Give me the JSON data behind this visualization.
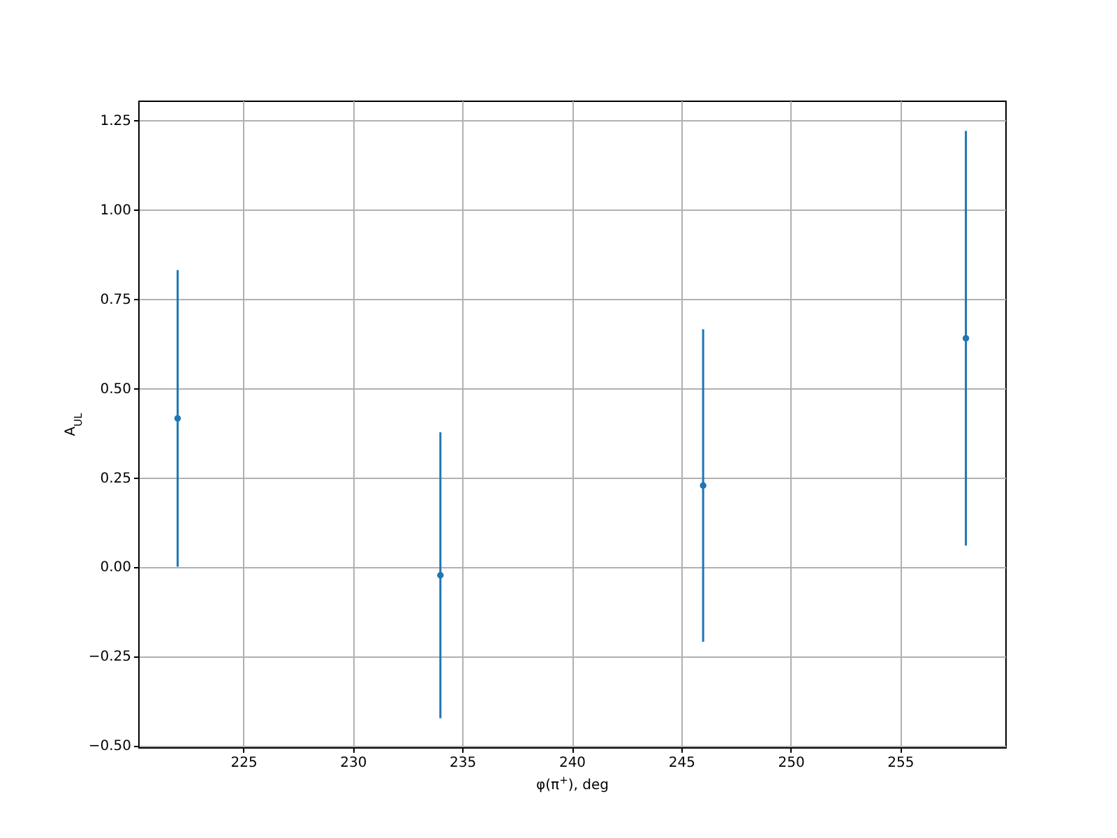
{
  "chart_data": {
    "type": "scatter",
    "xlabel": "φ(π$^{+}$), deg",
    "ylabel": "A$_{UL}$",
    "x": [
      222,
      234,
      246,
      258
    ],
    "series": [
      {
        "color": "#1f77b4",
        "values": [
          0.415,
          -0.024,
          0.227,
          0.639
        ],
        "errors": [
          0.415,
          0.4,
          0.437,
          0.58
        ]
      }
    ],
    "xlim": [
      220.2,
      259.8
    ],
    "xticks": [
      225,
      230,
      235,
      240,
      245,
      250,
      255
    ],
    "ylim": [
      -0.505,
      1.304
    ],
    "yticks": [
      {
        "value": -0.5,
        "label": "−0.50"
      },
      -0.25,
      {
        "value": 0,
        "label": "0.00"
      },
      0.25,
      {
        "value": 0.5,
        "label": "0.50"
      },
      0.75,
      {
        "value": 1,
        "label": "1.00"
      },
      1.25
    ],
    "grid": true,
    "marker": "circle"
  }
}
